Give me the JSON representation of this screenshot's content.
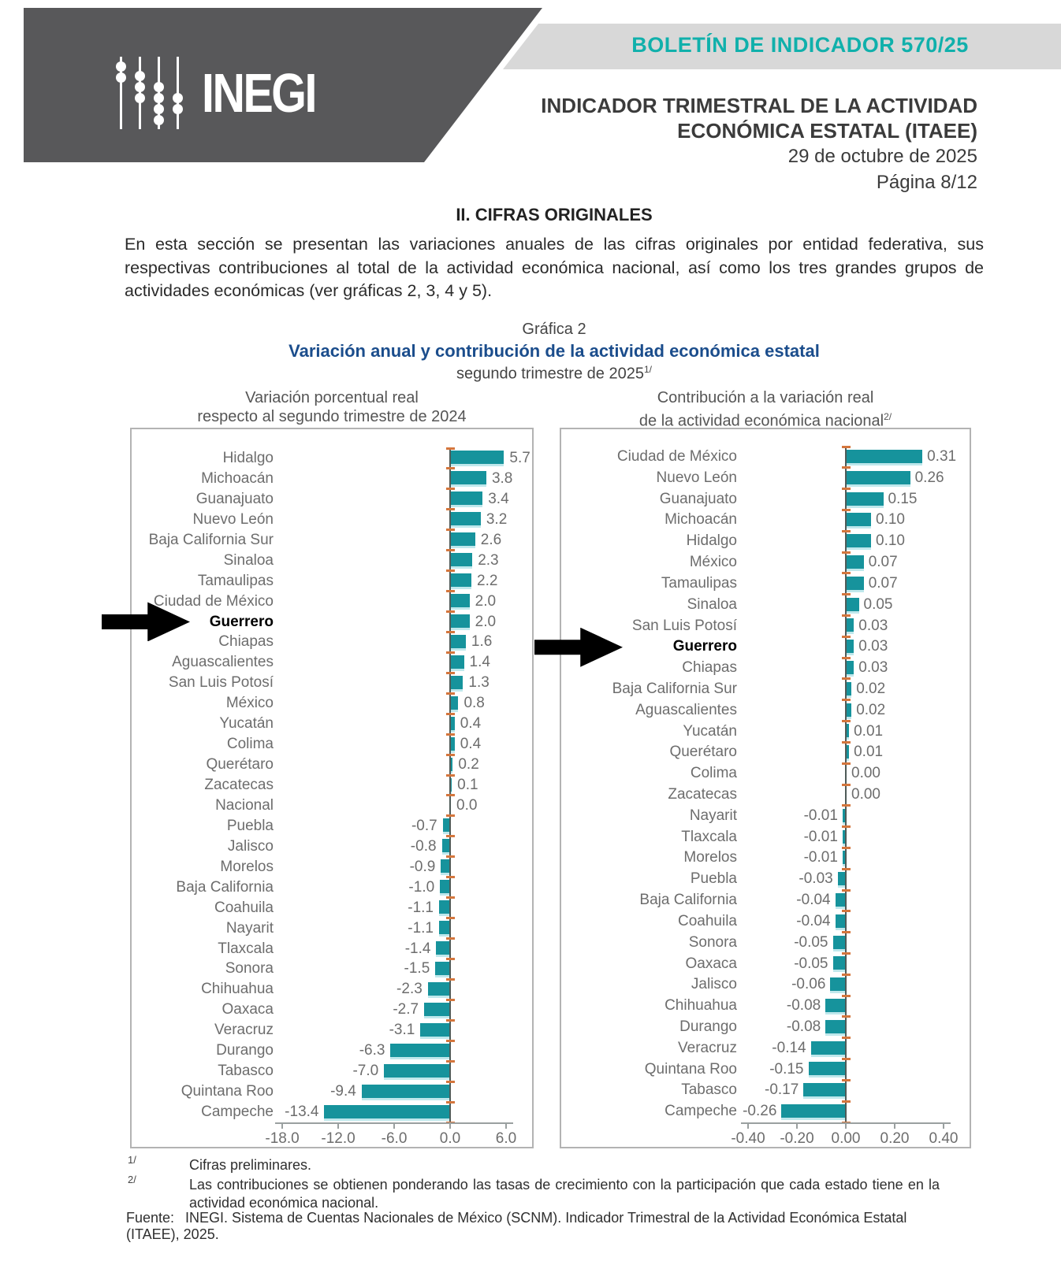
{
  "header": {
    "logo_text": "INEGI",
    "bulletin": "BOLETÍN DE INDICADOR 570/25",
    "title_line1": "INDICADOR TRIMESTRAL DE LA ACTIVIDAD",
    "title_line2": "ECONÓMICA ESTATAL (ITAEE)",
    "date": "29 de octubre de 2025",
    "page": "Página 8/12"
  },
  "section": {
    "title": "II. CIFRAS ORIGINALES",
    "paragraph": "En esta sección se presentan las variaciones anuales de las cifras originales por entidad federativa, sus respectivas contribuciones al total de la actividad económica nacional, así como los tres grandes grupos de actividades económicas (ver gráficas 2, 3, 4 y 5)."
  },
  "figure": {
    "label": "Gráfica 2",
    "title": "Variación anual y contribución de la actividad económica estatal",
    "subtitle": "segundo trimestre de 2025",
    "subtitle_sup": "1/",
    "left_heading_line1": "Variación porcentual real",
    "left_heading_line2": "respecto al segundo trimestre de 2024",
    "right_heading_line1": "Contribución a la variación real",
    "right_heading_line2": "de la actividad económica nacional",
    "right_heading_sup": "2/"
  },
  "chart_data": [
    {
      "type": "bar",
      "orientation": "horizontal",
      "title": "Variación porcentual real respecto al segundo trimestre de 2024",
      "decimals": 1,
      "categories": [
        "Hidalgo",
        "Michoacán",
        "Guanajuato",
        "Nuevo León",
        "Baja California Sur",
        "Sinaloa",
        "Tamaulipas",
        "Ciudad de México",
        "Guerrero",
        "Chiapas",
        "Aguascalientes",
        "San Luis Potosí",
        "México",
        "Yucatán",
        "Colima",
        "Querétaro",
        "Zacatecas",
        "Nacional",
        "Puebla",
        "Jalisco",
        "Morelos",
        "Baja California",
        "Coahuila",
        "Nayarit",
        "Tlaxcala",
        "Sonora",
        "Chihuahua",
        "Oaxaca",
        "Veracruz",
        "Durango",
        "Tabasco",
        "Quintana Roo",
        "Campeche"
      ],
      "values": [
        5.7,
        3.8,
        3.4,
        3.2,
        2.6,
        2.3,
        2.2,
        2.0,
        2.0,
        1.6,
        1.4,
        1.3,
        0.8,
        0.4,
        0.4,
        0.2,
        0.1,
        0.0,
        -0.7,
        -0.8,
        -0.9,
        -1.0,
        -1.1,
        -1.1,
        -1.4,
        -1.5,
        -2.3,
        -2.7,
        -3.1,
        -6.3,
        -7.0,
        -9.4,
        -13.4
      ],
      "highlight_category": "Guerrero",
      "xticks": [
        -18,
        -12,
        -6,
        0,
        6
      ],
      "xlim": [
        -18,
        6
      ],
      "grid": false,
      "bar_color": "#16939c"
    },
    {
      "type": "bar",
      "orientation": "horizontal",
      "title": "Contribución a la variación real de la actividad económica nacional",
      "decimals": 2,
      "categories": [
        "Ciudad de México",
        "Nuevo León",
        "Guanajuato",
        "Michoacán",
        "Hidalgo",
        "México",
        "Tamaulipas",
        "Sinaloa",
        "San Luis Potosí",
        "Guerrero",
        "Chiapas",
        "Baja California Sur",
        "Aguascalientes",
        "Yucatán",
        "Querétaro",
        "Colima",
        "Zacatecas",
        "Nayarit",
        "Tlaxcala",
        "Morelos",
        "Puebla",
        "Baja California",
        "Coahuila",
        "Sonora",
        "Oaxaca",
        "Jalisco",
        "Chihuahua",
        "Durango",
        "Veracruz",
        "Quintana Roo",
        "Tabasco",
        "Campeche"
      ],
      "values": [
        0.31,
        0.26,
        0.15,
        0.1,
        0.1,
        0.07,
        0.07,
        0.05,
        0.03,
        0.03,
        0.03,
        0.02,
        0.02,
        0.01,
        0.01,
        0.0,
        0.0,
        -0.01,
        -0.01,
        -0.01,
        -0.03,
        -0.04,
        -0.04,
        -0.05,
        -0.05,
        -0.06,
        -0.08,
        -0.08,
        -0.14,
        -0.15,
        -0.17,
        -0.26
      ],
      "highlight_category": "Guerrero",
      "xticks": [
        -0.4,
        -0.2,
        0.0,
        0.2,
        0.4
      ],
      "xlim": [
        -0.4,
        0.4
      ],
      "grid": false,
      "bar_color": "#16939c"
    }
  ],
  "footnotes": [
    {
      "marker": "1/",
      "text": "Cifras preliminares."
    },
    {
      "marker": "2/",
      "text": "Las contribuciones se obtienen ponderando las tasas de crecimiento con la participación que cada estado tiene en la actividad económica nacional."
    }
  ],
  "source": {
    "label": "Fuente:",
    "text": "INEGI. Sistema de Cuentas Nacionales de México (SCNM). Indicador Trimestral de la Actividad Económica Estatal (ITAEE), 2025."
  },
  "colors": {
    "accent_teal": "#10b0ab",
    "bar_teal": "#16939c",
    "bar_shadow": "#bfe8ec",
    "header_gray": "#58585a",
    "band_gray": "#d8d8d8",
    "title_blue": "#1b4d8c",
    "tick_orange": "#d4763d",
    "arrow_black": "#000000"
  }
}
